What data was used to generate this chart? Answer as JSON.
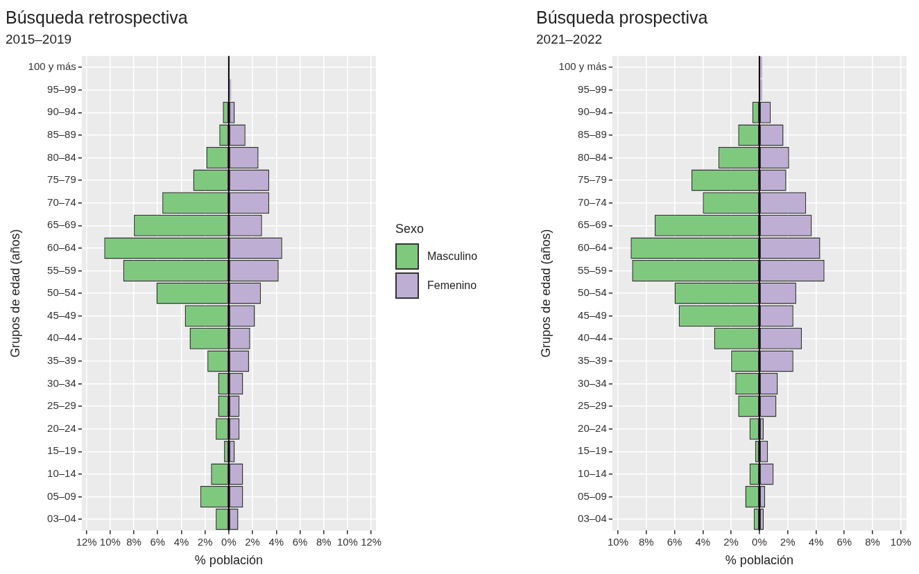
{
  "chart_data": [
    {
      "type": "bar",
      "title": "Búsqueda retrospectiva",
      "subtitle": "2015–2019",
      "xlabel": "% población",
      "ylabel": "Grupos de edad (años)",
      "legend_title": "Sexo",
      "orientation": "horizontal",
      "stacked": true,
      "grid": true,
      "legend": "right",
      "categories": [
        "100 y más",
        "95–99",
        "90–94",
        "85–89",
        "80–84",
        "75–79",
        "70–74",
        "65–69",
        "60–64",
        "55–59",
        "50–54",
        "45–49",
        "40–44",
        "35–39",
        "30–34",
        "25–29",
        "20–24",
        "15–19",
        "10–14",
        "05–09",
        "03–04"
      ],
      "series": [
        {
          "name": "Masculino",
          "color": "#7fc97f",
          "values": [
            0,
            0,
            -0.5,
            -0.8,
            -1.9,
            -3.0,
            -5.6,
            -8.0,
            -10.5,
            -8.9,
            -6.1,
            -3.7,
            -3.3,
            -1.8,
            -0.9,
            -0.9,
            -1.1,
            -0.4,
            -1.5,
            -2.4,
            -1.1
          ]
        },
        {
          "name": "Femenino",
          "color": "#beaed4",
          "values": [
            null,
            0.2,
            0.5,
            1.4,
            2.5,
            3.4,
            3.4,
            2.8,
            4.5,
            4.2,
            2.7,
            2.2,
            1.8,
            1.7,
            1.2,
            0.9,
            0.9,
            0.5,
            1.2,
            1.2,
            0.8
          ]
        }
      ],
      "xlim": [
        -12.4,
        12.4
      ],
      "xticks": [
        {
          "value": -12,
          "label": "12%"
        },
        {
          "value": -10,
          "label": "10%"
        },
        {
          "value": -8,
          "label": "8%"
        },
        {
          "value": -6,
          "label": "6%"
        },
        {
          "value": -4,
          "label": "4%"
        },
        {
          "value": -2,
          "label": "2%"
        },
        {
          "value": 0,
          "label": "0%"
        },
        {
          "value": 2,
          "label": "2%"
        },
        {
          "value": 4,
          "label": "4%"
        },
        {
          "value": 6,
          "label": "6%"
        },
        {
          "value": 8,
          "label": "8%"
        },
        {
          "value": 10,
          "label": "10%"
        },
        {
          "value": 12,
          "label": "12%"
        }
      ]
    },
    {
      "type": "bar",
      "title": "Búsqueda prospectiva",
      "subtitle": "2021–2022",
      "xlabel": "% población",
      "ylabel": "Grupos de edad (años)",
      "orientation": "horizontal",
      "stacked": true,
      "grid": true,
      "categories": [
        "100 y más",
        "95–99",
        "90–94",
        "85–89",
        "80–84",
        "75–79",
        "70–74",
        "65–69",
        "60–64",
        "55–59",
        "50–54",
        "45–49",
        "40–44",
        "35–39",
        "30–34",
        "25–29",
        "20–24",
        "15–19",
        "10–14",
        "05–09",
        "03–04"
      ],
      "series": [
        {
          "color": "#7fc97f",
          "values": [
            0,
            0,
            -0.5,
            -1.5,
            -2.9,
            -4.8,
            -4.0,
            -7.4,
            -9.1,
            -9.0,
            -6.0,
            -5.7,
            -3.2,
            -2.0,
            -1.7,
            -1.5,
            -0.7,
            -0.3,
            -0.7,
            -1.0,
            -0.4
          ]
        },
        {
          "color": "#beaed4",
          "values": [
            0.2,
            0.2,
            0.8,
            1.7,
            2.1,
            1.9,
            3.3,
            3.7,
            4.3,
            4.6,
            2.6,
            2.4,
            3.0,
            2.4,
            1.3,
            1.2,
            0.3,
            0.6,
            1.0,
            0.4,
            0.3
          ]
        }
      ],
      "xlim": [
        -10.4,
        10.4
      ],
      "xticks": [
        {
          "value": -10,
          "label": "10%"
        },
        {
          "value": -8,
          "label": "8%"
        },
        {
          "value": -6,
          "label": "6%"
        },
        {
          "value": -4,
          "label": "4%"
        },
        {
          "value": -2,
          "label": "2%"
        },
        {
          "value": 0,
          "label": "0%"
        },
        {
          "value": 2,
          "label": "2%"
        },
        {
          "value": 4,
          "label": "4%"
        },
        {
          "value": 6,
          "label": "6%"
        },
        {
          "value": 8,
          "label": "8%"
        },
        {
          "value": 10,
          "label": "10%"
        }
      ]
    }
  ]
}
